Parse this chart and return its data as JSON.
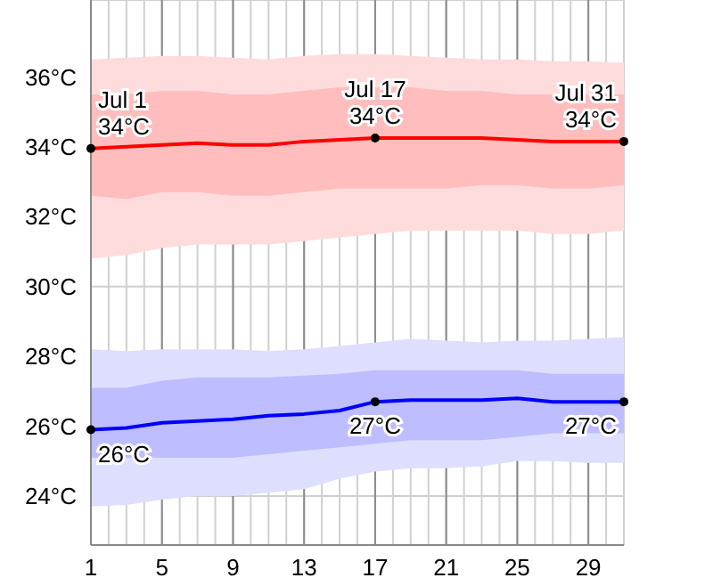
{
  "chart_data": {
    "type": "line",
    "x": [
      1,
      3,
      5,
      7,
      9,
      11,
      13,
      15,
      17,
      19,
      21,
      23,
      25,
      27,
      29,
      31
    ],
    "series": [
      {
        "type": "area",
        "color": "#ffdcdc",
        "lower": [
          30.8,
          30.9,
          31.1,
          31.2,
          31.2,
          31.2,
          31.3,
          31.4,
          31.5,
          31.6,
          31.6,
          31.6,
          31.6,
          31.5,
          31.5,
          31.6
        ],
        "upper": [
          36.5,
          36.55,
          36.6,
          36.6,
          36.55,
          36.5,
          36.6,
          36.65,
          36.65,
          36.6,
          36.55,
          36.5,
          36.5,
          36.45,
          36.45,
          36.4
        ],
        "values": [
          null,
          null,
          null,
          null,
          null,
          null,
          null,
          null,
          null,
          null,
          null,
          null,
          null,
          null,
          null,
          null
        ]
      },
      {
        "color": "#ff0000",
        "values": [
          33.95,
          34.0,
          34.05,
          34.1,
          34.05,
          34.05,
          34.15,
          34.2,
          34.25,
          34.25,
          34.25,
          34.25,
          34.2,
          34.15,
          34.15,
          34.15
        ],
        "lower": [
          32.6,
          32.5,
          32.7,
          32.7,
          32.6,
          32.6,
          32.7,
          32.8,
          32.8,
          32.8,
          32.8,
          32.9,
          32.9,
          32.8,
          32.8,
          32.9
        ],
        "upper": [
          35.5,
          35.5,
          35.6,
          35.6,
          35.5,
          35.5,
          35.6,
          35.7,
          35.7,
          35.7,
          35.6,
          35.6,
          35.5,
          35.5,
          35.5,
          35.5
        ]
      },
      {
        "type": "area",
        "color": "#dedeff",
        "lower": [
          23.7,
          23.75,
          23.9,
          24.0,
          24.0,
          24.1,
          24.2,
          24.5,
          24.7,
          24.8,
          24.8,
          24.85,
          25.0,
          25.0,
          24.95,
          24.95
        ],
        "upper": [
          28.2,
          28.15,
          28.2,
          28.2,
          28.2,
          28.15,
          28.2,
          28.3,
          28.4,
          28.5,
          28.45,
          28.4,
          28.45,
          28.45,
          28.5,
          28.55
        ],
        "values": [
          null,
          null,
          null,
          null,
          null,
          null,
          null,
          null,
          null,
          null,
          null,
          null,
          null,
          null,
          null,
          null
        ]
      },
      {
        "color": "#0000ff",
        "values": [
          25.9,
          25.95,
          26.1,
          26.15,
          26.2,
          26.3,
          26.35,
          26.45,
          26.7,
          26.75,
          26.75,
          26.75,
          26.8,
          26.7,
          26.7,
          26.7
        ],
        "lower": [
          25.1,
          25.1,
          25.1,
          25.1,
          25.1,
          25.2,
          25.3,
          25.4,
          25.5,
          25.6,
          25.6,
          25.6,
          25.7,
          25.8,
          25.8,
          25.8
        ],
        "upper": [
          27.1,
          27.1,
          27.3,
          27.4,
          27.4,
          27.4,
          27.45,
          27.5,
          27.6,
          27.6,
          27.6,
          27.6,
          27.6,
          27.5,
          27.5,
          27.5
        ]
      }
    ],
    "xlim": [
      1,
      31
    ],
    "xticks": [
      1,
      {
        "value": 2,
        "label": null
      },
      {
        "value": 3,
        "label": null
      },
      {
        "value": 4,
        "label": null
      },
      5,
      {
        "value": 6,
        "label": null
      },
      {
        "value": 7,
        "label": null
      },
      {
        "value": 8,
        "label": null
      },
      9,
      {
        "value": 10,
        "label": null
      },
      {
        "value": 11,
        "label": null
      },
      {
        "value": 12,
        "label": null
      },
      13,
      {
        "value": 14,
        "label": null
      },
      {
        "value": 15,
        "label": null
      },
      {
        "value": 16,
        "label": null
      },
      17,
      {
        "value": 18,
        "label": null
      },
      {
        "value": 19,
        "label": null
      },
      {
        "value": 20,
        "label": null
      },
      21,
      {
        "value": 22,
        "label": null
      },
      {
        "value": 23,
        "label": null
      },
      {
        "value": 24,
        "label": null
      },
      25,
      {
        "value": 26,
        "label": null
      },
      {
        "value": 27,
        "label": null
      },
      {
        "value": 28,
        "label": null
      },
      29,
      {
        "value": 30,
        "label": null
      },
      {
        "value": 31,
        "label": null
      }
    ],
    "ylim": [
      22.6,
      38.2
    ],
    "yticks": [
      {
        "value": 24,
        "label": "24°C"
      },
      {
        "value": 26,
        "label": "26°C"
      },
      {
        "value": 28,
        "label": "28°C"
      },
      {
        "value": 30,
        "label": "30°C"
      },
      {
        "value": 32,
        "label": "32°C"
      },
      {
        "value": 34,
        "label": "34°C"
      },
      {
        "value": 36,
        "label": "36°C"
      }
    ],
    "grid": true,
    "annotations": [
      {
        "text": "Jul 1\n34°C",
        "x": 1,
        "y": 33.95
      },
      {
        "text": "Jul 17\n34°C",
        "x": 17,
        "y": 34.25
      },
      {
        "text": "Jul 31\n34°C",
        "x": 31,
        "y": 34.15
      },
      {
        "text": "26°C",
        "x": 1,
        "y": 25.9
      },
      {
        "text": "27°C",
        "x": 17,
        "y": 26.7
      },
      {
        "text": "27°C",
        "x": 31,
        "y": 26.7
      }
    ]
  }
}
